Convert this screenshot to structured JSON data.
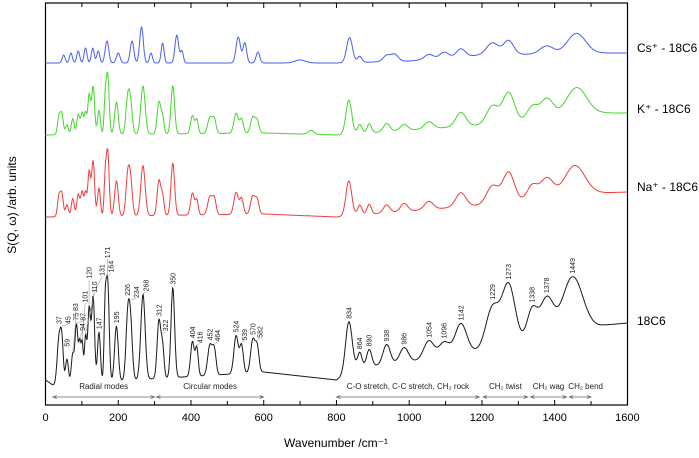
{
  "chart_data": {
    "type": "line",
    "xlabel": "Wavenumber /cm⁻¹",
    "ylabel": "S(Q, ω) /arb. units",
    "xlim": [
      0,
      1600
    ],
    "xticks": [
      "0",
      "200",
      "400",
      "600",
      "800",
      "1000",
      "1200",
      "1400",
      "1600"
    ],
    "yticks": [],
    "grid": false,
    "legend": "labels at right end of each trace",
    "series": [
      {
        "name": "Cs⁺ - 18C6",
        "color": "#4a5ef0",
        "peaks": [
          [
            50,
            8,
            4
          ],
          [
            70,
            10,
            4
          ],
          [
            90,
            12,
            4
          ],
          [
            110,
            15,
            4
          ],
          [
            130,
            15,
            4
          ],
          [
            145,
            12,
            4
          ],
          [
            169,
            22,
            5
          ],
          [
            200,
            10,
            5
          ],
          [
            238,
            22,
            5
          ],
          [
            264,
            36,
            5
          ],
          [
            290,
            10,
            4
          ],
          [
            322,
            20,
            4
          ],
          [
            361,
            28,
            5
          ],
          [
            375,
            12,
            4
          ],
          [
            530,
            26,
            6
          ],
          [
            548,
            20,
            5
          ],
          [
            584,
            11,
            5
          ],
          [
            700,
            3,
            15
          ],
          [
            836,
            25,
            8
          ],
          [
            864,
            6,
            6
          ],
          [
            938,
            6,
            10
          ],
          [
            960,
            7,
            10
          ],
          [
            1054,
            5,
            12
          ],
          [
            1096,
            6,
            12
          ],
          [
            1142,
            8,
            12
          ],
          [
            1229,
            12,
            16
          ],
          [
            1273,
            14,
            14
          ],
          [
            1378,
            8,
            18
          ],
          [
            1460,
            20,
            25
          ]
        ],
        "background": [
          [
            0,
            0
          ],
          [
            400,
            0
          ],
          [
            800,
            0
          ],
          [
            1000,
            2
          ],
          [
            1200,
            8
          ],
          [
            1530,
            10
          ],
          [
            1600,
            10
          ]
        ]
      },
      {
        "name": "K⁺ - 18C6",
        "color": "#44d62c",
        "peaks": [
          [
            37,
            18,
            4
          ],
          [
            45,
            20,
            4
          ],
          [
            59,
            10,
            4
          ],
          [
            75,
            16,
            4
          ],
          [
            90,
            20,
            4
          ],
          [
            101,
            22,
            4
          ],
          [
            110,
            20,
            3
          ],
          [
            120,
            40,
            4
          ],
          [
            131,
            48,
            4
          ],
          [
            147,
            24,
            4
          ],
          [
            164,
            32,
            3
          ],
          [
            171,
            60,
            4
          ],
          [
            195,
            32,
            5
          ],
          [
            226,
            34,
            5
          ],
          [
            234,
            28,
            5
          ],
          [
            268,
            48,
            6
          ],
          [
            312,
            32,
            5
          ],
          [
            322,
            16,
            4
          ],
          [
            350,
            48,
            5
          ],
          [
            404,
            18,
            5
          ],
          [
            416,
            14,
            4
          ],
          [
            452,
            16,
            6
          ],
          [
            464,
            14,
            5
          ],
          [
            524,
            20,
            6
          ],
          [
            539,
            14,
            5
          ],
          [
            570,
            16,
            6
          ],
          [
            582,
            12,
            5
          ],
          [
            730,
            4,
            8
          ],
          [
            834,
            34,
            8
          ],
          [
            864,
            9,
            6
          ],
          [
            890,
            9,
            6
          ],
          [
            938,
            8,
            9
          ],
          [
            986,
            6,
            10
          ],
          [
            1054,
            7,
            12
          ],
          [
            1142,
            14,
            14
          ],
          [
            1229,
            18,
            16
          ],
          [
            1273,
            30,
            16
          ],
          [
            1338,
            13,
            14
          ],
          [
            1378,
            20,
            18
          ],
          [
            1460,
            28,
            28
          ]
        ],
        "background": [
          [
            0,
            0
          ],
          [
            600,
            2
          ],
          [
            800,
            0
          ],
          [
            1000,
            5
          ],
          [
            1200,
            10
          ],
          [
            1530,
            22
          ],
          [
            1600,
            22
          ]
        ]
      },
      {
        "name": "Na⁺ - 18C6",
        "color": "#f03c3c",
        "peaks": [
          [
            37,
            20,
            4
          ],
          [
            45,
            22,
            4
          ],
          [
            59,
            12,
            4
          ],
          [
            75,
            18,
            4
          ],
          [
            90,
            22,
            4
          ],
          [
            101,
            25,
            4
          ],
          [
            110,
            22,
            3
          ],
          [
            120,
            45,
            4
          ],
          [
            131,
            55,
            4
          ],
          [
            147,
            28,
            4
          ],
          [
            164,
            35,
            3
          ],
          [
            171,
            65,
            4
          ],
          [
            195,
            35,
            5
          ],
          [
            226,
            38,
            5
          ],
          [
            234,
            32,
            5
          ],
          [
            268,
            50,
            6
          ],
          [
            312,
            35,
            5
          ],
          [
            322,
            18,
            4
          ],
          [
            350,
            52,
            5
          ],
          [
            404,
            22,
            5
          ],
          [
            416,
            15,
            4
          ],
          [
            452,
            18,
            6
          ],
          [
            464,
            16,
            5
          ],
          [
            524,
            22,
            6
          ],
          [
            539,
            16,
            5
          ],
          [
            570,
            18,
            6
          ],
          [
            582,
            14,
            5
          ],
          [
            834,
            35,
            8
          ],
          [
            864,
            10,
            6
          ],
          [
            890,
            10,
            6
          ],
          [
            938,
            8,
            9
          ],
          [
            986,
            8,
            10
          ],
          [
            1054,
            8,
            12
          ],
          [
            1142,
            14,
            14
          ],
          [
            1229,
            18,
            16
          ],
          [
            1273,
            30,
            16
          ],
          [
            1338,
            14,
            14
          ],
          [
            1378,
            20,
            18
          ],
          [
            1455,
            30,
            28
          ]
        ],
        "background": [
          [
            0,
            0
          ],
          [
            600,
            3
          ],
          [
            800,
            0
          ],
          [
            1000,
            6
          ],
          [
            1200,
            12
          ],
          [
            1520,
            24
          ],
          [
            1600,
            25
          ]
        ]
      },
      {
        "name": "18C6",
        "color": "#1a1a1a",
        "peaks": [
          [
            37,
            45,
            5
          ],
          [
            45,
            40,
            4
          ],
          [
            59,
            25,
            4
          ],
          [
            75,
            30,
            4
          ],
          [
            83,
            35,
            3
          ],
          [
            87,
            38,
            3
          ],
          [
            94,
            40,
            3
          ],
          [
            101,
            40,
            3
          ],
          [
            110,
            45,
            3
          ],
          [
            120,
            75,
            4
          ],
          [
            131,
            85,
            4
          ],
          [
            147,
            50,
            4
          ],
          [
            164,
            70,
            3
          ],
          [
            171,
            100,
            4
          ],
          [
            195,
            55,
            5
          ],
          [
            226,
            60,
            5
          ],
          [
            234,
            52,
            5
          ],
          [
            268,
            85,
            6
          ],
          [
            312,
            58,
            5
          ],
          [
            322,
            30,
            4
          ],
          [
            350,
            90,
            5
          ],
          [
            404,
            35,
            5
          ],
          [
            416,
            28,
            4
          ],
          [
            452,
            30,
            6
          ],
          [
            464,
            25,
            5
          ],
          [
            524,
            38,
            6
          ],
          [
            539,
            28,
            5
          ],
          [
            570,
            33,
            6
          ],
          [
            582,
            25,
            5
          ],
          [
            834,
            50,
            9
          ],
          [
            864,
            15,
            6
          ],
          [
            890,
            17,
            7
          ],
          [
            938,
            20,
            10
          ],
          [
            986,
            15,
            12
          ],
          [
            1054,
            18,
            14
          ],
          [
            1096,
            14,
            14
          ],
          [
            1142,
            30,
            16
          ],
          [
            1229,
            40,
            18
          ],
          [
            1273,
            60,
            18
          ],
          [
            1338,
            30,
            14
          ],
          [
            1378,
            38,
            18
          ],
          [
            1449,
            55,
            28
          ]
        ],
        "background": [
          [
            0,
            0
          ],
          [
            20,
            -5
          ],
          [
            600,
            8
          ],
          [
            800,
            0
          ],
          [
            850,
            12
          ],
          [
            1000,
            18
          ],
          [
            1200,
            30
          ],
          [
            1540,
            55
          ],
          [
            1600,
            57
          ]
        ],
        "peak_labels": [
          "37",
          "45",
          "59",
          "75",
          "83",
          "87",
          "94",
          "101",
          "110",
          "120",
          "131",
          "147",
          "164",
          "171",
          "195",
          "226",
          "234",
          "268",
          "312",
          "322",
          "350",
          "404",
          "416",
          "452",
          "464",
          "524",
          "539",
          "570",
          "582",
          "834",
          "864",
          "890",
          "938",
          "986",
          "1054",
          "1096",
          "1142",
          "1229",
          "1273",
          "1338",
          "1378",
          "1449"
        ]
      }
    ],
    "regions": [
      {
        "label": "Radial modes",
        "range": [
          20,
          300
        ]
      },
      {
        "label": "Circular modes",
        "range": [
          305,
          600
        ]
      },
      {
        "label": "C-O stretch, C-C stretch, CH₂ rock",
        "range": [
          800,
          1193
        ]
      },
      {
        "label": "CH₂ twist",
        "range": [
          1203,
          1326
        ]
      },
      {
        "label": "CH₂ wag",
        "range": [
          1333,
          1433
        ]
      },
      {
        "label": "CH₂ bend",
        "range": [
          1440,
          1500
        ]
      }
    ]
  }
}
